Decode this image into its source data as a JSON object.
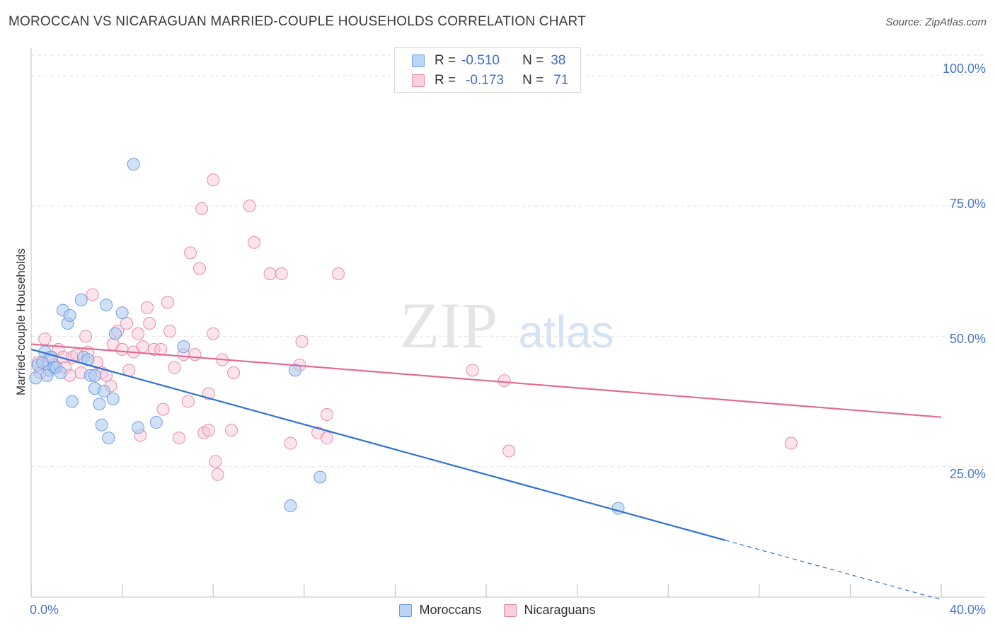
{
  "header": {
    "title": "MOROCCAN VS NICARAGUAN MARRIED-COUPLE HOUSEHOLDS CORRELATION CHART",
    "source": "Source: ZipAtlas.com"
  },
  "watermark": {
    "zip": "ZIP",
    "atlas": "atlas"
  },
  "legend_top": {
    "moroccans": {
      "r_label": "R =",
      "r_value": "-0.510",
      "n_label": "N =",
      "n_value": "38"
    },
    "nicaraguans": {
      "r_label": "R =",
      "r_value": "-0.173",
      "n_label": "N =",
      "n_value": "71"
    }
  },
  "colors": {
    "blue_fill": "#aac8f0",
    "blue_stroke": "#6f9fdc",
    "blue_line": "#2f72d2",
    "pink_fill": "#f8c4d4",
    "pink_stroke": "#e88aa8",
    "pink_line": "#e26a94",
    "tick_text": "#4a78c8",
    "grid": "#e3e3e3"
  },
  "chart_data": {
    "type": "scatter",
    "title": "MOROCCAN VS NICARAGUAN MARRIED-COUPLE HOUSEHOLDS CORRELATION CHART",
    "xlabel": "",
    "ylabel": "Married-couple Households",
    "xlim": [
      0,
      40
    ],
    "ylim": [
      0,
      105
    ],
    "x_tick_labels": [
      "0.0%",
      "40.0%"
    ],
    "y_ticks": [
      25,
      50,
      75,
      100
    ],
    "y_tick_labels": [
      "25.0%",
      "50.0%",
      "75.0%",
      "100.0%"
    ],
    "legend": [
      "Moroccans",
      "Nicaraguans"
    ],
    "series": [
      {
        "name": "Moroccans",
        "r": -0.51,
        "n": 38,
        "trend": {
          "x_start": 0,
          "y_start": 47.5,
          "x_solid_end": 30.5,
          "x_end": 40,
          "y_end": -0.5
        },
        "points": [
          [
            0.2,
            42
          ],
          [
            0.3,
            44.5
          ],
          [
            0.5,
            45
          ],
          [
            0.6,
            47
          ],
          [
            0.8,
            43.5
          ],
          [
            0.9,
            46
          ],
          [
            1.0,
            44
          ],
          [
            0.7,
            42.5
          ],
          [
            1.1,
            44
          ],
          [
            1.3,
            43
          ],
          [
            1.4,
            55
          ],
          [
            1.6,
            52.5
          ],
          [
            1.7,
            54
          ],
          [
            1.8,
            37.5
          ],
          [
            2.2,
            57
          ],
          [
            2.3,
            46
          ],
          [
            2.5,
            45.5
          ],
          [
            2.6,
            42.5
          ],
          [
            2.8,
            40
          ],
          [
            2.8,
            42.5
          ],
          [
            3.0,
            37
          ],
          [
            3.1,
            33
          ],
          [
            3.2,
            39.5
          ],
          [
            3.3,
            56
          ],
          [
            3.4,
            30.5
          ],
          [
            3.6,
            38
          ],
          [
            3.7,
            50.5
          ],
          [
            4.0,
            54.5
          ],
          [
            4.5,
            83
          ],
          [
            4.7,
            32.5
          ],
          [
            5.5,
            33.5
          ],
          [
            6.7,
            48
          ],
          [
            11.4,
            17.5
          ],
          [
            11.6,
            43.5
          ],
          [
            12.7,
            23
          ],
          [
            25.8,
            17
          ]
        ]
      },
      {
        "name": "Nicaraguans",
        "r": -0.173,
        "n": 71,
        "trend": {
          "x_start": 0,
          "y_start": 48.5,
          "x_end": 40,
          "y_end": 34.5
        },
        "points": [
          [
            0.3,
            45
          ],
          [
            0.4,
            43
          ],
          [
            0.6,
            49.5
          ],
          [
            0.8,
            46
          ],
          [
            1.0,
            44.5
          ],
          [
            1.2,
            47.5
          ],
          [
            1.4,
            46
          ],
          [
            1.5,
            44
          ],
          [
            1.7,
            42.5
          ],
          [
            1.8,
            46
          ],
          [
            2.0,
            46.5
          ],
          [
            2.2,
            43
          ],
          [
            2.4,
            50
          ],
          [
            2.5,
            47
          ],
          [
            2.7,
            58
          ],
          [
            2.9,
            45
          ],
          [
            3.1,
            43
          ],
          [
            3.3,
            42.5
          ],
          [
            3.5,
            40.5
          ],
          [
            3.6,
            48.5
          ],
          [
            3.8,
            51
          ],
          [
            4.0,
            47.5
          ],
          [
            4.2,
            52.5
          ],
          [
            4.3,
            43.5
          ],
          [
            4.5,
            47
          ],
          [
            4.7,
            50.5
          ],
          [
            4.8,
            31
          ],
          [
            4.9,
            48
          ],
          [
            5.1,
            55.5
          ],
          [
            5.2,
            52.5
          ],
          [
            5.4,
            47.5
          ],
          [
            5.7,
            47.5
          ],
          [
            5.8,
            36
          ],
          [
            6.0,
            56.5
          ],
          [
            6.1,
            51
          ],
          [
            6.3,
            44
          ],
          [
            6.5,
            30.5
          ],
          [
            6.7,
            46.5
          ],
          [
            6.9,
            37.5
          ],
          [
            7.0,
            66
          ],
          [
            7.2,
            46.5
          ],
          [
            7.4,
            63
          ],
          [
            7.5,
            74.5
          ],
          [
            7.6,
            31.5
          ],
          [
            7.8,
            39
          ],
          [
            7.8,
            32
          ],
          [
            8.0,
            80
          ],
          [
            8.1,
            26
          ],
          [
            8.2,
            23.5
          ],
          [
            8.0,
            50.5
          ],
          [
            8.4,
            45.5
          ],
          [
            8.8,
            32
          ],
          [
            8.9,
            43
          ],
          [
            9.6,
            75
          ],
          [
            9.8,
            68
          ],
          [
            10.5,
            62
          ],
          [
            11.0,
            62
          ],
          [
            11.4,
            29.5
          ],
          [
            11.8,
            44.5
          ],
          [
            11.9,
            49
          ],
          [
            12.6,
            31.5
          ],
          [
            13.0,
            35
          ],
          [
            13.0,
            30.5
          ],
          [
            13.5,
            62
          ],
          [
            19.4,
            43.5
          ],
          [
            20.8,
            41.5
          ],
          [
            21.0,
            28
          ],
          [
            33.4,
            29.5
          ]
        ]
      }
    ]
  },
  "bottom_legend": {
    "moroccans": "Moroccans",
    "nicaraguans": "Nicaraguans"
  }
}
